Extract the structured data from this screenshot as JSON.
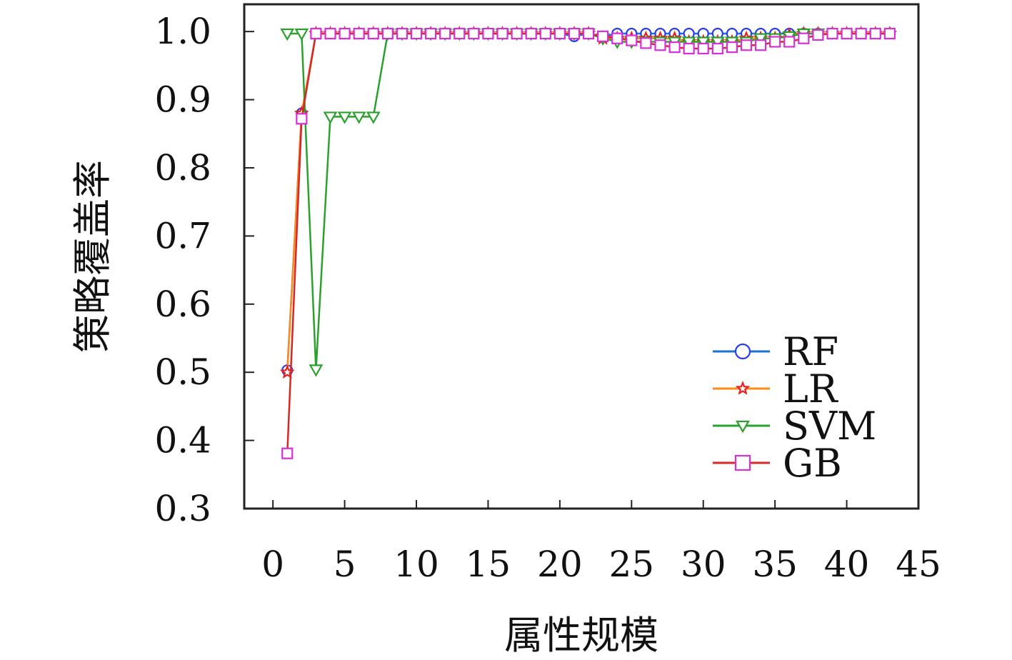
{
  "chart_data": {
    "type": "line",
    "title": "",
    "xlabel": "属性规模",
    "ylabel": "策略覆盖率",
    "xlim": [
      -2,
      45
    ],
    "ylim": [
      0.3,
      1.04
    ],
    "x_ticks": [
      0,
      5,
      10,
      15,
      20,
      25,
      30,
      35,
      40,
      45
    ],
    "x_tick_labels": [
      "0",
      "5",
      "10",
      "15",
      "20",
      "25",
      "30",
      "35",
      "40",
      "45"
    ],
    "y_ticks": [
      0.3,
      0.4,
      0.5,
      0.6,
      0.7,
      0.8,
      0.9,
      1.0
    ],
    "y_tick_labels": [
      "0.3",
      "0.4",
      "0.5",
      "0.6",
      "0.7",
      "0.8",
      "0.9",
      "1.0"
    ],
    "grid": false,
    "legend_position": "bottom-right",
    "series": [
      {
        "name": "RF",
        "color": "#1f6fd6",
        "marker_color": "#2a3cf0",
        "marker": "circle",
        "x": [
          1,
          2,
          3,
          4,
          5,
          6,
          7,
          8,
          9,
          10,
          11,
          12,
          13,
          14,
          15,
          16,
          17,
          18,
          19,
          20,
          21,
          22,
          23,
          24,
          25,
          26,
          27,
          28,
          29,
          30,
          31,
          32,
          33,
          34,
          35,
          36,
          37,
          38,
          39,
          40,
          41,
          42,
          43
        ],
        "y": [
          0.503,
          0.88,
          0.997,
          0.997,
          0.997,
          0.997,
          0.997,
          0.997,
          0.997,
          0.997,
          0.997,
          0.997,
          0.997,
          0.997,
          0.997,
          0.997,
          0.997,
          0.997,
          0.997,
          0.997,
          0.993,
          0.997,
          0.993,
          0.997,
          0.997,
          0.997,
          0.997,
          0.997,
          0.997,
          0.997,
          0.997,
          0.997,
          0.997,
          0.997,
          0.997,
          0.997,
          0.997,
          0.997,
          0.997,
          0.997,
          0.997,
          0.997,
          0.997
        ]
      },
      {
        "name": "LR",
        "color": "#ff8c1a",
        "marker_color": "#e8201c",
        "marker": "star",
        "x": [
          1,
          2,
          3,
          4,
          5,
          6,
          7,
          8,
          9,
          10,
          11,
          12,
          13,
          14,
          15,
          16,
          17,
          18,
          19,
          20,
          21,
          22,
          23,
          24,
          25,
          26,
          27,
          28,
          29,
          30,
          31,
          32,
          33,
          34,
          35,
          36,
          37,
          38,
          39,
          40,
          41,
          42,
          43
        ],
        "y": [
          0.5,
          0.88,
          0.997,
          0.997,
          0.997,
          0.997,
          0.997,
          0.997,
          0.997,
          0.997,
          0.997,
          0.997,
          0.997,
          0.997,
          0.997,
          0.997,
          0.997,
          0.997,
          0.997,
          0.997,
          0.997,
          0.997,
          0.99,
          0.99,
          0.99,
          0.99,
          0.99,
          0.99,
          0.985,
          0.985,
          0.985,
          0.985,
          0.99,
          0.99,
          0.99,
          0.995,
          0.997,
          0.997,
          0.997,
          0.997,
          0.997,
          0.997,
          0.997
        ]
      },
      {
        "name": "SVM",
        "color": "#2ca02c",
        "marker_color": "#2ca02c",
        "marker": "triangle-down",
        "x": [
          1,
          2,
          3,
          4,
          5,
          6,
          7,
          8,
          9,
          10,
          11,
          12,
          13,
          14,
          15,
          16,
          17,
          18,
          19,
          20,
          21,
          22,
          23,
          24,
          25,
          26,
          27,
          28,
          29,
          30,
          31,
          32,
          33,
          34,
          35,
          36,
          37,
          38
        ],
        "y": [
          0.997,
          0.997,
          0.504,
          0.875,
          0.875,
          0.875,
          0.875,
          0.997,
          0.997,
          0.997,
          0.997,
          0.997,
          0.997,
          0.997,
          0.997,
          0.997,
          0.997,
          0.997,
          0.997,
          0.997,
          0.997,
          0.997,
          0.99,
          0.985,
          0.985,
          0.985,
          0.985,
          0.985,
          0.985,
          0.985,
          0.985,
          0.985,
          0.985,
          0.99,
          0.99,
          0.993,
          0.997,
          0.997
        ]
      },
      {
        "name": "GB",
        "color": "#d62728",
        "marker_color": "#d630d6",
        "marker": "square",
        "x": [
          1,
          2,
          3,
          4,
          5,
          6,
          7,
          8,
          9,
          10,
          11,
          12,
          13,
          14,
          15,
          16,
          17,
          18,
          19,
          20,
          21,
          22,
          23,
          24,
          25,
          26,
          27,
          28,
          29,
          30,
          31,
          32,
          33,
          34,
          35,
          36,
          37,
          38,
          39,
          40,
          41,
          42,
          43
        ],
        "y": [
          0.381,
          0.872,
          0.997,
          0.997,
          0.997,
          0.997,
          0.997,
          0.997,
          0.997,
          0.997,
          0.997,
          0.997,
          0.997,
          0.997,
          0.997,
          0.997,
          0.997,
          0.997,
          0.997,
          0.997,
          0.997,
          0.997,
          0.993,
          0.99,
          0.987,
          0.983,
          0.98,
          0.977,
          0.975,
          0.975,
          0.975,
          0.977,
          0.98,
          0.98,
          0.985,
          0.985,
          0.99,
          0.995,
          0.997,
          0.997,
          0.997,
          0.997,
          0.997
        ]
      }
    ]
  }
}
